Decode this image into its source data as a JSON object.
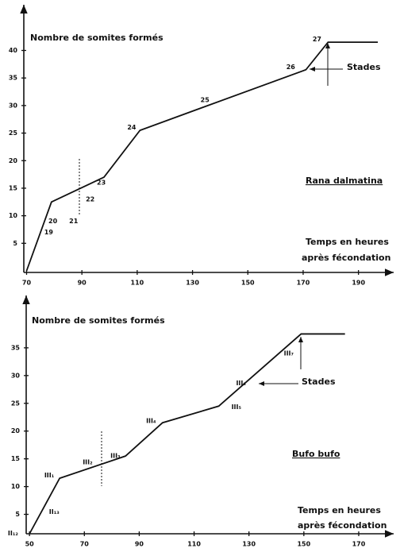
{
  "chart_data": [
    {
      "type": "line",
      "ylabel": "Nombre de somites formés",
      "species": "Rana dalmatina",
      "xlabel": [
        "Temps en heures",
        "après fécondation"
      ],
      "stage_label": "Stades",
      "xlim": [
        69,
        201
      ],
      "xticks": [
        70,
        90,
        110,
        130,
        150,
        170,
        190
      ],
      "ylim": [
        0,
        48
      ],
      "yticks": [
        5,
        10,
        15,
        20,
        25,
        30,
        35,
        40
      ],
      "series": [
        {
          "color": "#111111",
          "x": [
            70,
            79,
            98,
            111,
            171,
            179,
            197
          ],
          "values": [
            0,
            12.5,
            17,
            25.5,
            36.5,
            41.5,
            41.5
          ]
        }
      ],
      "annotations": [
        {
          "text": "19",
          "x": 78,
          "y": 7
        },
        {
          "text": "20",
          "x": 79.5,
          "y": 9
        },
        {
          "text": "21",
          "x": 87,
          "y": 9
        },
        {
          "text": "22",
          "x": 93,
          "y": 13
        },
        {
          "text": "23",
          "x": 97,
          "y": 16
        },
        {
          "text": "24",
          "x": 108,
          "y": 26
        },
        {
          "text": "25",
          "x": 134.5,
          "y": 31
        },
        {
          "text": "26",
          "x": 165.5,
          "y": 37
        },
        {
          "text": "27",
          "x": 175,
          "y": 42
        }
      ]
    },
    {
      "type": "line",
      "ylabel": "Nombre de somites formés",
      "species": "Bufo bufo",
      "xlabel": [
        "Temps en heures",
        "après fécondation"
      ],
      "stage_label": "Stades",
      "xlim": [
        48.8,
        181
      ],
      "xticks": [
        50,
        70,
        90,
        110,
        130,
        150,
        170
      ],
      "ylim": [
        1.5,
        44
      ],
      "yticks": [
        5,
        10,
        15,
        20,
        25,
        30,
        35
      ],
      "series": [
        {
          "color": "#111111",
          "x": [
            50,
            61,
            85,
            98.5,
            119,
            149,
            165
          ],
          "values": [
            1.5,
            11.5,
            15.5,
            21.5,
            24.5,
            37.5,
            37.5
          ]
        }
      ],
      "annotations": [
        {
          "text": "II₁₂",
          "x": 44,
          "y": 1.6
        },
        {
          "text": "II₁₃",
          "x": 59,
          "y": 5.4
        },
        {
          "text": "III₁",
          "x": 57.2,
          "y": 12
        },
        {
          "text": "III₂",
          "x": 71.2,
          "y": 14.4
        },
        {
          "text": "III₃",
          "x": 81.3,
          "y": 15.5
        },
        {
          "text": "III₄",
          "x": 94.3,
          "y": 21.8
        },
        {
          "text": "III₅",
          "x": 125.4,
          "y": 24.3
        },
        {
          "text": "III₆",
          "x": 127.1,
          "y": 28.6
        },
        {
          "text": "III₇",
          "x": 144.5,
          "y": 34
        }
      ]
    }
  ]
}
